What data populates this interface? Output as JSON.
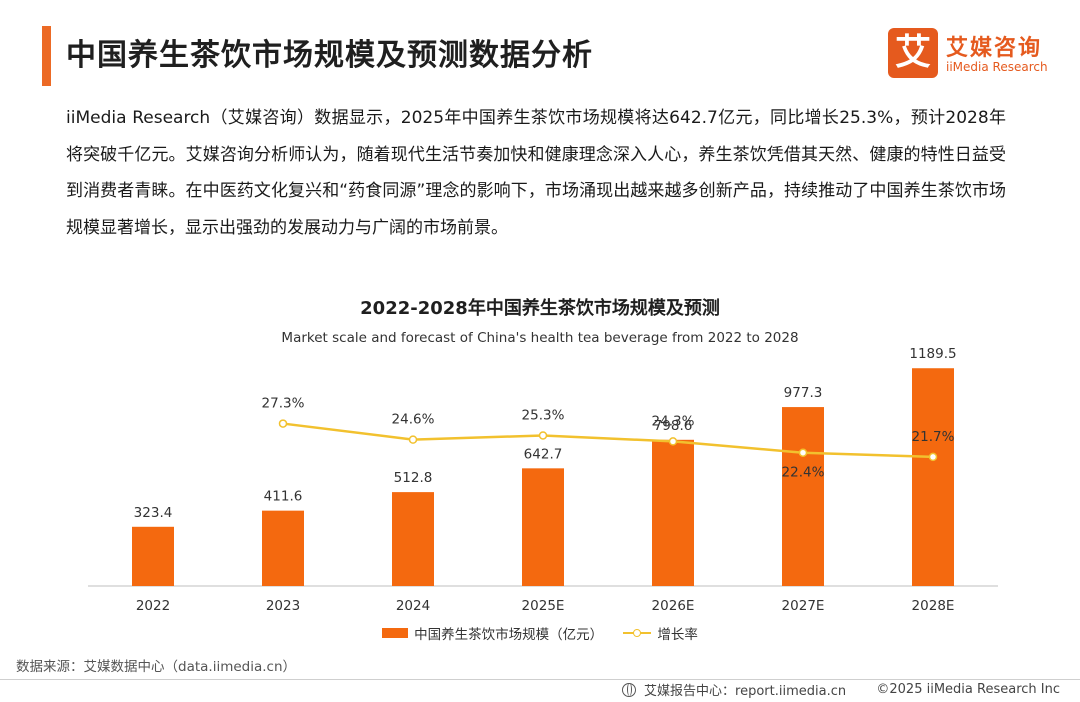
{
  "header": {
    "title": "中国养生茶饮市场规模及预测数据分析",
    "brand_cn": "艾媒咨询",
    "brand_en": "iiMedia Research",
    "brand_mark": "艾",
    "accent_color": "#ec6a25"
  },
  "intro": "iiMedia Research（艾媒咨询）数据显示，2025年中国养生茶饮市场规模将达642.7亿元，同比增长25.3%，预计2028年将突破千亿元。艾媒咨询分析师认为，随着现代生活节奏加快和健康理念深入人心，养生茶饮凭借其天然、健康的特性日益受到消费者青睐。在中医药文化复兴和“药食同源”理念的影响下，市场涌现出越来越多创新产品，持续推动了中国养生茶饮市场规模显著增长，显示出强劲的发展动力与广阔的市场前景。",
  "chart_data": {
    "type": "bar",
    "title": "2022-2028年中国养生茶饮市场规模及预测",
    "subtitle": "Market scale and forecast of China's health tea beverage from 2022 to 2028",
    "categories": [
      "2022",
      "2023",
      "2024",
      "2025E",
      "2026E",
      "2027E",
      "2028E"
    ],
    "series": [
      {
        "name": "中国养生茶饮市场规模（亿元）",
        "type": "bar",
        "color": "#f4690f",
        "values": [
          323.4,
          411.6,
          512.8,
          642.7,
          798.6,
          977.3,
          1189.5
        ],
        "labels": [
          "323.4",
          "411.6",
          "512.8",
          "642.7",
          "798.6",
          "977.3",
          "1189.5"
        ]
      },
      {
        "name": "增长率",
        "type": "line",
        "color": "#f2c12e",
        "values": [
          null,
          27.3,
          24.6,
          25.3,
          24.3,
          22.4,
          21.7
        ],
        "labels": [
          "",
          "27.3%",
          "24.6%",
          "25.3%",
          "24.3%",
          "22.4%",
          "21.7%"
        ]
      }
    ],
    "ylim": [
      0,
      1300
    ],
    "y2lim": [
      0,
      40
    ],
    "grid": false,
    "legend_position": "bottom"
  },
  "source": "数据来源：艾媒数据中心（data.iimedia.cn）",
  "footer": {
    "site": "艾媒报告中心：report.iimedia.cn",
    "copyright": "©2025  iiMedia Research  Inc"
  }
}
